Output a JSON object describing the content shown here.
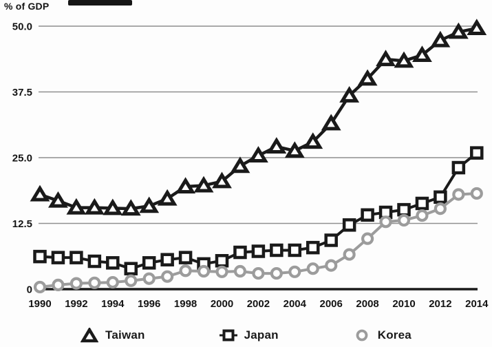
{
  "header": {
    "axis_title": "% of GDP",
    "cropped_title_bar": "black redacted/cropped bar"
  },
  "colors": {
    "ink": "#1a1a1a",
    "korea_gray": "#9c9c9c",
    "gridline": "#8f8f8f",
    "marker_fill": "#ffffff",
    "background": "#fdfdfd"
  },
  "chart_data": {
    "type": "line",
    "title": "",
    "ylabel": "% of GDP",
    "xlabel": "",
    "ylim": [
      0,
      50
    ],
    "grid": "horizontal",
    "legend_position": "bottom",
    "y_ticks": [
      {
        "value": 0,
        "label": "0"
      },
      {
        "value": 12.5,
        "label": "12.5"
      },
      {
        "value": 25,
        "label": "25.0"
      },
      {
        "value": 37.5,
        "label": "37.5"
      },
      {
        "value": 50,
        "label": "50.0"
      }
    ],
    "x_tick_labels": [
      "1990",
      "1992",
      "1994",
      "1996",
      "1998",
      "2000",
      "2002",
      "2004",
      "2006",
      "2008",
      "2010",
      "2012",
      "2014"
    ],
    "x": [
      1990,
      1991,
      1992,
      1993,
      1994,
      1995,
      1996,
      1997,
      1998,
      1999,
      2000,
      2001,
      2002,
      2003,
      2004,
      2005,
      2006,
      2007,
      2008,
      2009,
      2010,
      2011,
      2012,
      2013,
      2014
    ],
    "series": [
      {
        "name": "Taiwan",
        "marker": "triangle",
        "color": "#1a1a1a",
        "values": [
          18.0,
          16.8,
          15.5,
          15.5,
          15.4,
          15.3,
          15.8,
          17.2,
          19.5,
          19.7,
          20.5,
          23.4,
          25.4,
          27.1,
          26.3,
          28.0,
          31.5,
          36.8,
          40.0,
          43.7,
          43.4,
          44.5,
          47.3,
          48.9,
          49.6
        ]
      },
      {
        "name": "Japan",
        "marker": "square",
        "color": "#1a1a1a",
        "values": [
          6.2,
          6.0,
          6.0,
          5.3,
          5.0,
          3.9,
          5.0,
          5.6,
          6.0,
          4.8,
          5.4,
          7.0,
          7.2,
          7.4,
          7.4,
          7.9,
          9.3,
          12.2,
          14.1,
          14.6,
          15.1,
          16.3,
          17.5,
          23.1,
          25.9
        ]
      },
      {
        "name": "Korea",
        "marker": "circle",
        "color": "#9c9c9c",
        "values": [
          0.4,
          0.8,
          1.1,
          1.2,
          1.3,
          1.6,
          2.0,
          2.4,
          3.5,
          3.4,
          3.3,
          3.4,
          3.0,
          3.0,
          3.3,
          3.9,
          4.5,
          6.6,
          9.6,
          12.8,
          13.1,
          14.0,
          15.3,
          18.0,
          18.2
        ]
      }
    ]
  }
}
